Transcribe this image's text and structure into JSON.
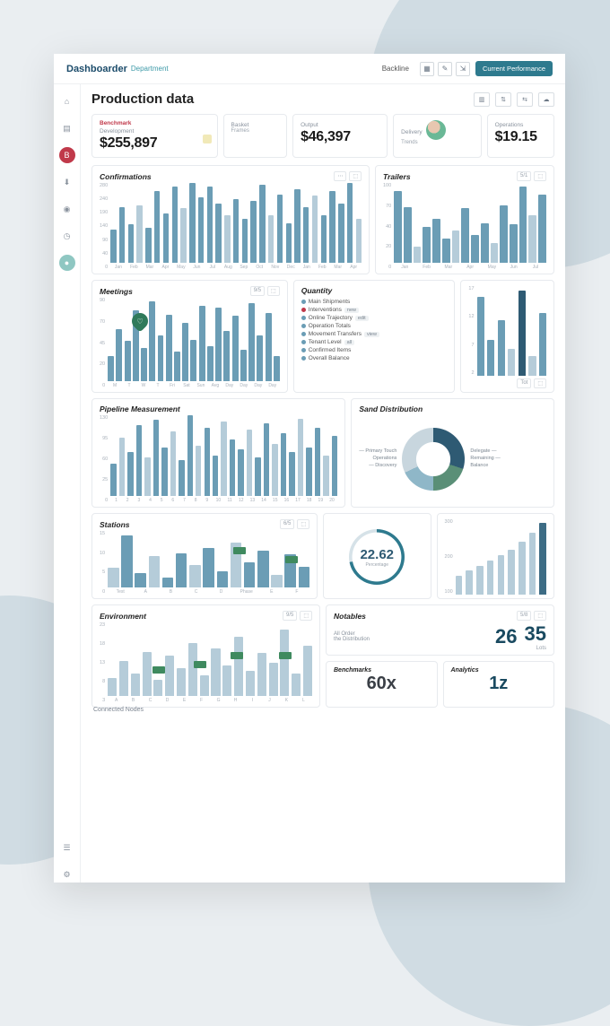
{
  "brand": {
    "name": "Dashboarder",
    "sub": "Department"
  },
  "topbar": {
    "link": "Backline",
    "button": "Current Performance"
  },
  "page": {
    "title": "Production data"
  },
  "kpi": {
    "k1": {
      "tag": "Benchmark",
      "label": "Development",
      "value": "$255,897"
    },
    "k2": {
      "label": "Basket",
      "sub": "Frames"
    },
    "k3": {
      "label": "Output",
      "value": "$46,397"
    },
    "k4": {
      "label": "Delivery",
      "sub": "Trends"
    },
    "k5": {
      "label": "Operations",
      "value": "$19.15"
    }
  },
  "cards": {
    "confirmations": {
      "title": "Confirmations",
      "yticks": [
        "280",
        "240",
        "190",
        "140",
        "90",
        "40",
        "0"
      ],
      "xticks": [
        "Jan",
        "Feb",
        "Mar",
        "Apr",
        "May",
        "Jun",
        "Jul",
        "Aug",
        "Sep",
        "Oct",
        "Nov",
        "Dec",
        "Jan",
        "Feb",
        "Mar",
        "Apr"
      ],
      "values": [
        42,
        70,
        48,
        72,
        44,
        90,
        62,
        95,
        68,
        100,
        82,
        96,
        74,
        60,
        80,
        55,
        78,
        98,
        60,
        85,
        50,
        92,
        70,
        84,
        60,
        90,
        74,
        100,
        55
      ],
      "color_main": "#6b9db5",
      "color_light": "#b5ccd9"
    },
    "trailers": {
      "title": "Trailers",
      "yticks": [
        "100",
        "70",
        "40",
        "20",
        "0"
      ],
      "xticks": [
        "Jan",
        "Feb",
        "Mar",
        "Apr",
        "May",
        "Jun",
        "Jul"
      ],
      "values": [
        90,
        70,
        20,
        45,
        55,
        30,
        40,
        68,
        35,
        50,
        25,
        72,
        48,
        95,
        60,
        85
      ]
    },
    "meetings": {
      "title": "Meetings",
      "yticks": [
        "90",
        "70",
        "45",
        "20",
        "0"
      ],
      "xticks": [
        "M",
        "T",
        "W",
        "T",
        "Fri",
        "Sat",
        "Sun",
        "Avg",
        "Day",
        "Day",
        "Day",
        "Day"
      ],
      "values": [
        30,
        62,
        48,
        85,
        40,
        96,
        55,
        80,
        35,
        70,
        50,
        90,
        42,
        88,
        60,
        78,
        38,
        94,
        55,
        82,
        30
      ]
    },
    "quantity": {
      "title": "Quantity",
      "items": [
        {
          "dot": "#6b9db5",
          "label": "Main Shipments"
        },
        {
          "dot": "#c0394a",
          "label": "Interventions",
          "pill": "new"
        },
        {
          "dot": "#6b9db5",
          "label": "Online Trajectory",
          "pill": "edit"
        },
        {
          "dot": "#6b9db5",
          "label": "Operation Totals"
        },
        {
          "dot": "#6b9db5",
          "label": "Movement Transfers",
          "pill": "view"
        },
        {
          "dot": "#6b9db5",
          "label": "Tenant Level",
          "pill": "all"
        },
        {
          "dot": "#6b9db5",
          "label": "Confirmed Items"
        },
        {
          "dot": "#6b9db5",
          "label": "Overall Balance"
        }
      ]
    },
    "side_small": {
      "yticks": [
        "17",
        "12",
        "7",
        "2"
      ],
      "values": [
        88,
        40,
        62,
        30,
        95,
        22,
        70
      ],
      "colors": [
        "#6b9db5",
        "#6b9db5",
        "#6b9db5",
        "#b5ccd9",
        "#2e5a73",
        "#b5ccd9",
        "#6b9db5"
      ]
    },
    "pipeline": {
      "title": "Pipeline Measurement",
      "yticks": [
        "130",
        "95",
        "60",
        "25",
        "0"
      ],
      "xticks": [
        "1",
        "2",
        "3",
        "4",
        "5",
        "6",
        "7",
        "8",
        "9",
        "10",
        "11",
        "12",
        "13",
        "14",
        "15",
        "16",
        "17",
        "18",
        "19",
        "20"
      ],
      "values": [
        40,
        72,
        55,
        88,
        48,
        95,
        60,
        80,
        45,
        100,
        62,
        85,
        50,
        92,
        70,
        58,
        82,
        48,
        90,
        65,
        78,
        55,
        96,
        60,
        84,
        50,
        74
      ]
    },
    "distribution": {
      "title": "Sand Distribution",
      "segments": [
        {
          "label": "Primary Touch",
          "sub": "Operations",
          "pct": 30,
          "color": "#2e5a73"
        },
        {
          "label": "Discovery",
          "pct": 20,
          "color": "#5a8f77"
        },
        {
          "label": "Delegate",
          "pct": 18,
          "color": "#8fb7c8"
        },
        {
          "label": "Remaining",
          "sub": "Balance",
          "pct": 32,
          "color": "#c8d6de"
        }
      ]
    },
    "stations": {
      "title": "Stations",
      "yticks": [
        "15",
        "10",
        "5",
        "0"
      ],
      "xticks": [
        "Test",
        "A",
        "B",
        "C",
        "D",
        "Phase",
        "E",
        "F"
      ],
      "values": [
        35,
        92,
        25,
        55,
        18,
        60,
        40,
        70,
        28,
        80,
        45,
        65,
        22,
        58,
        36
      ]
    },
    "ring": {
      "value": "22.62",
      "sub": "Percentage",
      "fg": "#2e7a8e",
      "bg": "#d6e2e8",
      "pct": 72
    },
    "growth": {
      "yticks": [
        "300",
        "200",
        "100"
      ],
      "values": [
        25,
        32,
        38,
        45,
        52,
        60,
        70,
        82,
        95
      ],
      "highlight": 8
    },
    "environment": {
      "title": "Environment",
      "yticks": [
        "23",
        "18",
        "13",
        "8",
        "3"
      ],
      "xticks": [
        "A",
        "B",
        "C",
        "D",
        "E",
        "F",
        "G",
        "H",
        "I",
        "J",
        "K",
        "L"
      ],
      "values": [
        25,
        48,
        30,
        60,
        22,
        55,
        38,
        72,
        28,
        65,
        42,
        80,
        34,
        58,
        45,
        90,
        30,
        68
      ]
    },
    "notables": {
      "title": "Notables",
      "label": "All Order",
      "sub": "the Distribution",
      "v1": "26",
      "v2": "35",
      "s2": "Lots"
    },
    "box1": {
      "title": "Benchmarks",
      "value": "60x"
    },
    "box2": {
      "title": "Analytics",
      "value": "1z"
    }
  },
  "footer": "Connected Nodes"
}
